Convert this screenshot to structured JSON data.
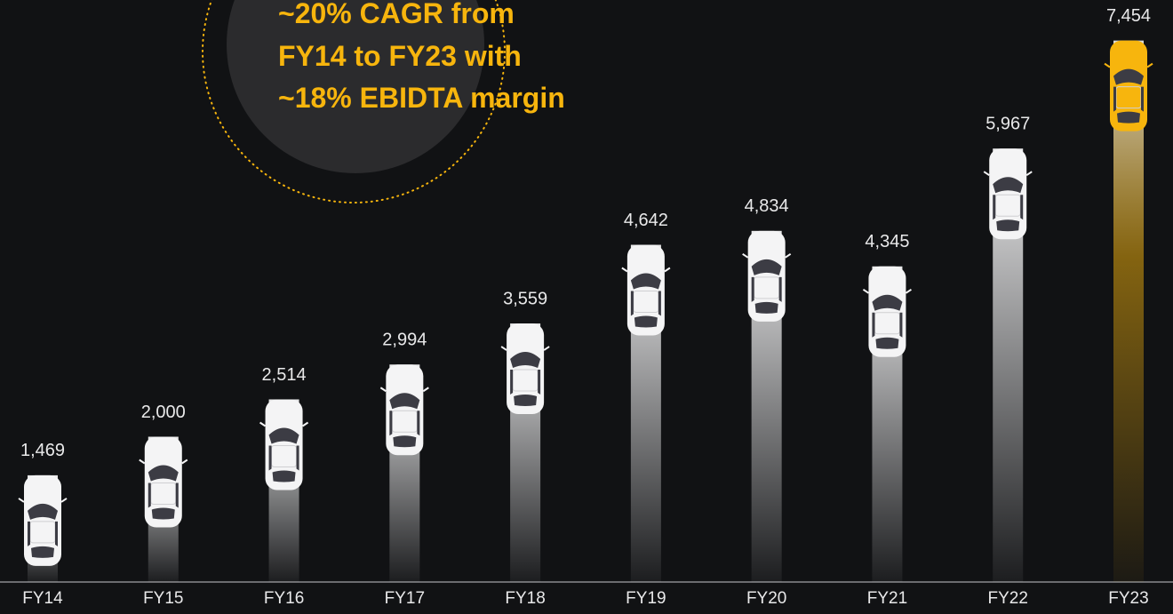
{
  "chart_data": {
    "type": "bar",
    "annotation": [
      "~20% CAGR from",
      "FY14 to FY23 with",
      "~18% EBIDTA margin"
    ],
    "annotation_color": "#f7b50d",
    "categories": [
      "FY14",
      "FY15",
      "FY16",
      "FY17",
      "FY18",
      "FY19",
      "FY20",
      "FY21",
      "FY22",
      "FY23"
    ],
    "values": [
      1469,
      2000,
      2514,
      2994,
      3559,
      4642,
      4834,
      4345,
      5967,
      7454
    ],
    "value_labels": [
      "1,469",
      "2,000",
      "2,514",
      "2,994",
      "3,559",
      "4,642",
      "4,834",
      "4,345",
      "5,967",
      "7,454"
    ],
    "colors": [
      "#f4f4f5",
      "#f4f4f5",
      "#f4f4f5",
      "#f4f4f5",
      "#f4f4f5",
      "#f4f4f5",
      "#f4f4f5",
      "#f4f4f5",
      "#f4f4f5",
      "#f7b50d"
    ],
    "ylim": [
      0,
      8000
    ]
  }
}
